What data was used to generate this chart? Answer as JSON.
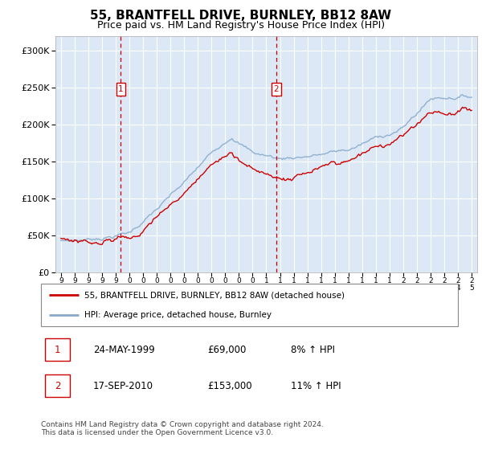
{
  "title": "55, BRANTFELL DRIVE, BURNLEY, BB12 8AW",
  "subtitle": "Price paid vs. HM Land Registry's House Price Index (HPI)",
  "title_fontsize": 11,
  "subtitle_fontsize": 9,
  "legend_label_red": "55, BRANTFELL DRIVE, BURNLEY, BB12 8AW (detached house)",
  "legend_label_blue": "HPI: Average price, detached house, Burnley",
  "transaction1_date": "24-MAY-1999",
  "transaction1_price": "£69,000",
  "transaction1_hpi": "8% ↑ HPI",
  "transaction2_date": "17-SEP-2010",
  "transaction2_price": "£153,000",
  "transaction2_hpi": "11% ↑ HPI",
  "footer": "Contains HM Land Registry data © Crown copyright and database right 2024.\nThis data is licensed under the Open Government Licence v3.0.",
  "ylim": [
    0,
    320000
  ],
  "yticks": [
    0,
    50000,
    100000,
    150000,
    200000,
    250000,
    300000
  ],
  "plot_bg_color": "#dce8f5",
  "grid_color": "#ffffff",
  "red_color": "#cc0000",
  "blue_color": "#88aacc",
  "vline_color": "#cc0000",
  "marker1_x": 1999.38,
  "marker2_x": 2010.71,
  "marker_y": 248000,
  "xlim_left": 1994.6,
  "xlim_right": 2025.4
}
